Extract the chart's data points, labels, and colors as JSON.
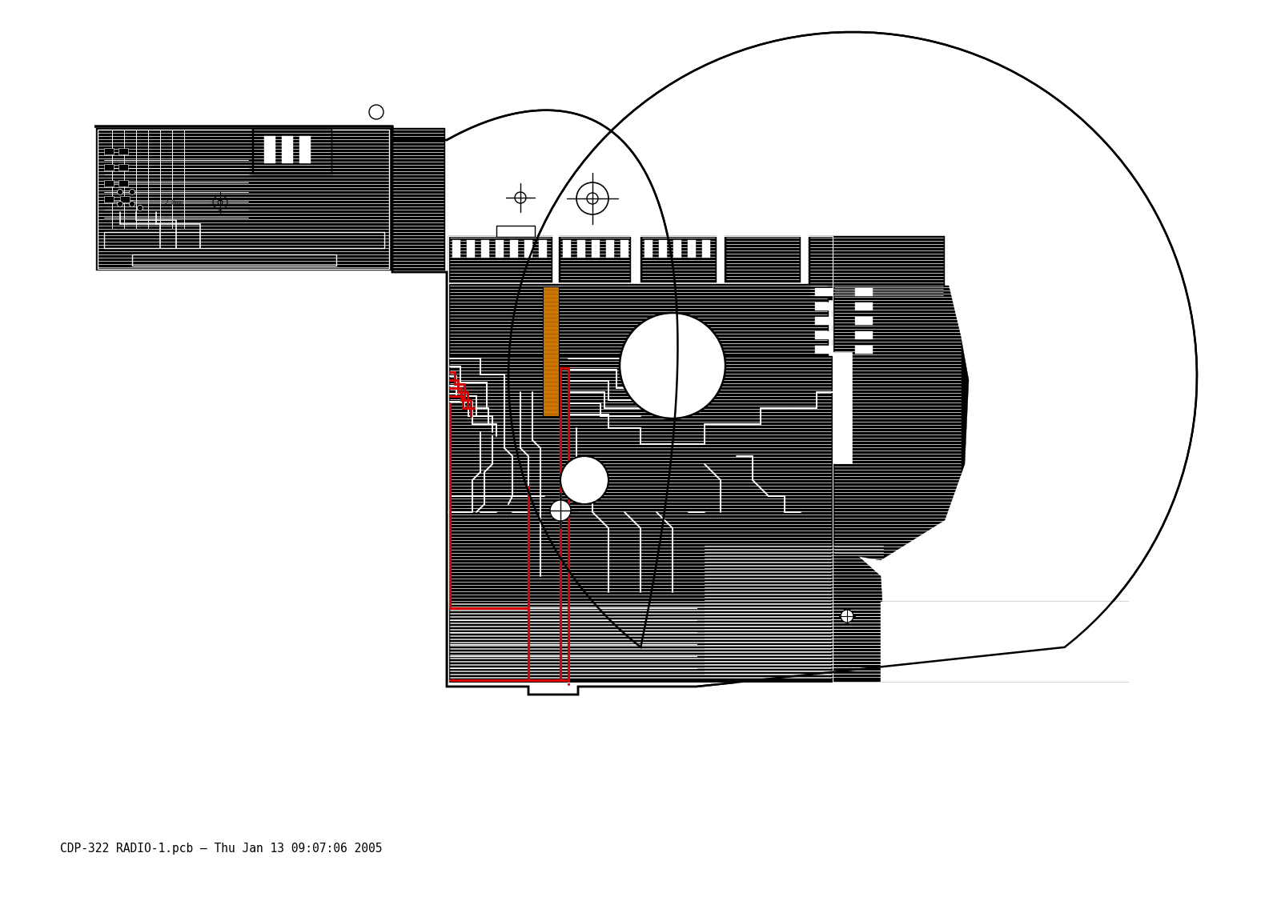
{
  "background_color": "#ffffff",
  "line_color": "#000000",
  "red_color": "#dd0000",
  "orange_color": "#cc7700",
  "fill_color": "#000000",
  "title_text": "CDP-322 RADIO-1.pcb – Thu Jan 13 09:07:06 2005",
  "title_fontsize": 10.5,
  "title_family": "monospace",
  "figsize": [
    16.0,
    11.31
  ],
  "dpi": 100
}
